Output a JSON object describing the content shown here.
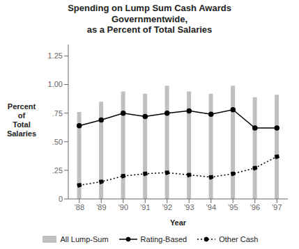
{
  "chart_data": {
    "type": "bar",
    "title": "Spending on Lump Sum Cash Awards\nGovernmentwide,\nas a Percent of Total Salaries",
    "x_label": "Year",
    "y_label": "Percent\nof\nTotal\nSalaries",
    "categories": [
      "’88",
      "’89",
      "’90",
      "’91",
      "’92",
      "’93",
      "’94",
      "’95",
      "’96",
      "’97"
    ],
    "series": [
      {
        "name": "All Lump-Sum",
        "type": "bar",
        "color": "#c0c0c0",
        "values": [
          0.76,
          0.85,
          0.94,
          0.92,
          0.99,
          0.94,
          0.92,
          0.99,
          0.89,
          0.91
        ]
      },
      {
        "name": "Rating-Based",
        "type": "line",
        "color": "#000000",
        "line_style": "solid",
        "marker": "circle",
        "values": [
          0.64,
          0.69,
          0.75,
          0.72,
          0.75,
          0.77,
          0.74,
          0.78,
          0.62,
          0.62
        ]
      },
      {
        "name": "Other Cash",
        "type": "line",
        "color": "#000000",
        "line_style": "dotted",
        "marker": "circle",
        "values": [
          0.12,
          0.15,
          0.2,
          0.22,
          0.23,
          0.21,
          0.19,
          0.22,
          0.27,
          0.37
        ]
      }
    ],
    "ylim": [
      0,
      1.35
    ],
    "yticks": [
      0,
      {
        "value": 0.25,
        "label": ".25"
      },
      {
        "value": 0.5,
        "label": ".50"
      },
      {
        "value": 0.75,
        "label": ".75"
      },
      {
        "value": 1.0,
        "label": "1.00"
      },
      1.25
    ],
    "grid": false,
    "legend": "bottom"
  }
}
